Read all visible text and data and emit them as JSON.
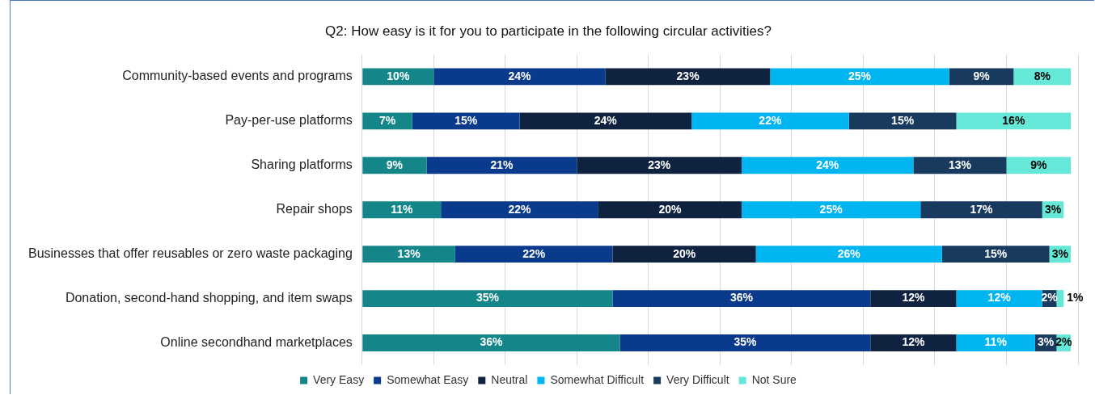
{
  "chart_data": {
    "type": "bar",
    "orientation": "horizontal",
    "stacked": true,
    "title": "Q2: How easy is it for you to participate in the following circular activities?",
    "categories": [
      "Community-based events and programs",
      "Pay-per-use platforms",
      "Sharing platforms",
      "Repair shops",
      "Businesses that offer reusables or zero waste packaging",
      "Donation, second-hand shopping, and item swaps",
      "Online secondhand marketplaces"
    ],
    "series": [
      {
        "name": "Very Easy",
        "color": "#14868a",
        "values": [
          10,
          7,
          9,
          11,
          13,
          35,
          36
        ],
        "value_labels": [
          "10%",
          "7%",
          "9%",
          "11%",
          "13%",
          "35%",
          "36%"
        ]
      },
      {
        "name": "Somewhat Easy",
        "color": "#0a3a8c",
        "values": [
          24,
          15,
          21,
          22,
          22,
          36,
          35
        ],
        "value_labels": [
          "24%",
          "15%",
          "21%",
          "22%",
          "22%",
          "36%",
          "35%"
        ]
      },
      {
        "name": "Neutral",
        "color": "#0f2240",
        "values": [
          23,
          24,
          23,
          20,
          20,
          12,
          12
        ],
        "value_labels": [
          "23%",
          "24%",
          "23%",
          "20%",
          "20%",
          "12%",
          "12%"
        ]
      },
      {
        "name": "Somewhat Difficult",
        "color": "#00b5f0",
        "values": [
          25,
          22,
          24,
          25,
          26,
          12,
          11
        ],
        "value_labels": [
          "25%",
          "22%",
          "24%",
          "25%",
          "26%",
          "12%",
          "11%"
        ]
      },
      {
        "name": "Very Difficult",
        "color": "#173a5e",
        "values": [
          9,
          15,
          13,
          17,
          15,
          2,
          3
        ],
        "value_labels": [
          "9%",
          "15%",
          "13%",
          "17%",
          "15%",
          "2%",
          "3%"
        ]
      },
      {
        "name": "Not Sure",
        "color": "#66e8d8",
        "values": [
          8,
          16,
          9,
          3,
          3,
          1,
          2
        ],
        "value_labels": [
          "8%",
          "16%",
          "9%",
          "3%",
          "3%",
          "1%",
          "2%"
        ]
      }
    ],
    "grid": "x",
    "legend": "bottom",
    "tick_labels": "y"
  }
}
